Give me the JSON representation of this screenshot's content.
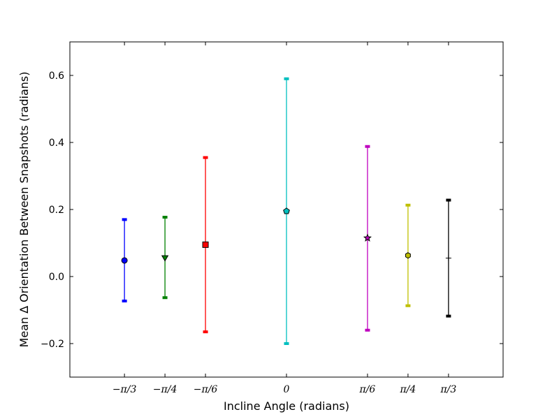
{
  "chart_data": {
    "type": "errorbar",
    "title": "",
    "xlabel": "Incline Angle (radians)",
    "ylabel": "Mean ∆ Orientation Between Snapshots (radians)",
    "xlim": [
      -1.4,
      1.4
    ],
    "ylim": [
      -0.3,
      0.7
    ],
    "yticks": [
      -0.2,
      0.0,
      0.2,
      0.4,
      0.6
    ],
    "ytick_labels": [
      "−0.2",
      "0.0",
      "0.2",
      "0.4",
      "0.6"
    ],
    "grid": false,
    "points": [
      {
        "x_label": "−π/3",
        "x": -1.0472,
        "y": 0.048,
        "err_low": -0.073,
        "err_high": 0.17,
        "color": "#0000ff",
        "marker": "circle"
      },
      {
        "x_label": "−π/4",
        "x": -0.7854,
        "y": 0.057,
        "err_low": -0.063,
        "err_high": 0.177,
        "color": "#008000",
        "marker": "triangle-down"
      },
      {
        "x_label": "−π/6",
        "x": -0.5236,
        "y": 0.095,
        "err_low": -0.165,
        "err_high": 0.355,
        "color": "#ff0000",
        "marker": "square"
      },
      {
        "x_label": "0",
        "x": 0.0,
        "y": 0.195,
        "err_low": -0.2,
        "err_high": 0.59,
        "color": "#00bfbf",
        "marker": "pentagon"
      },
      {
        "x_label": "π/6",
        "x": 0.5236,
        "y": 0.115,
        "err_low": -0.16,
        "err_high": 0.388,
        "color": "#bf00bf",
        "marker": "star"
      },
      {
        "x_label": "π/4",
        "x": 0.7854,
        "y": 0.063,
        "err_low": -0.087,
        "err_high": 0.213,
        "color": "#bfbf00",
        "marker": "hexagon"
      },
      {
        "x_label": "π/3",
        "x": 1.0472,
        "y": 0.055,
        "err_low": -0.118,
        "err_high": 0.228,
        "color": "#000000",
        "marker": "plus"
      }
    ]
  }
}
